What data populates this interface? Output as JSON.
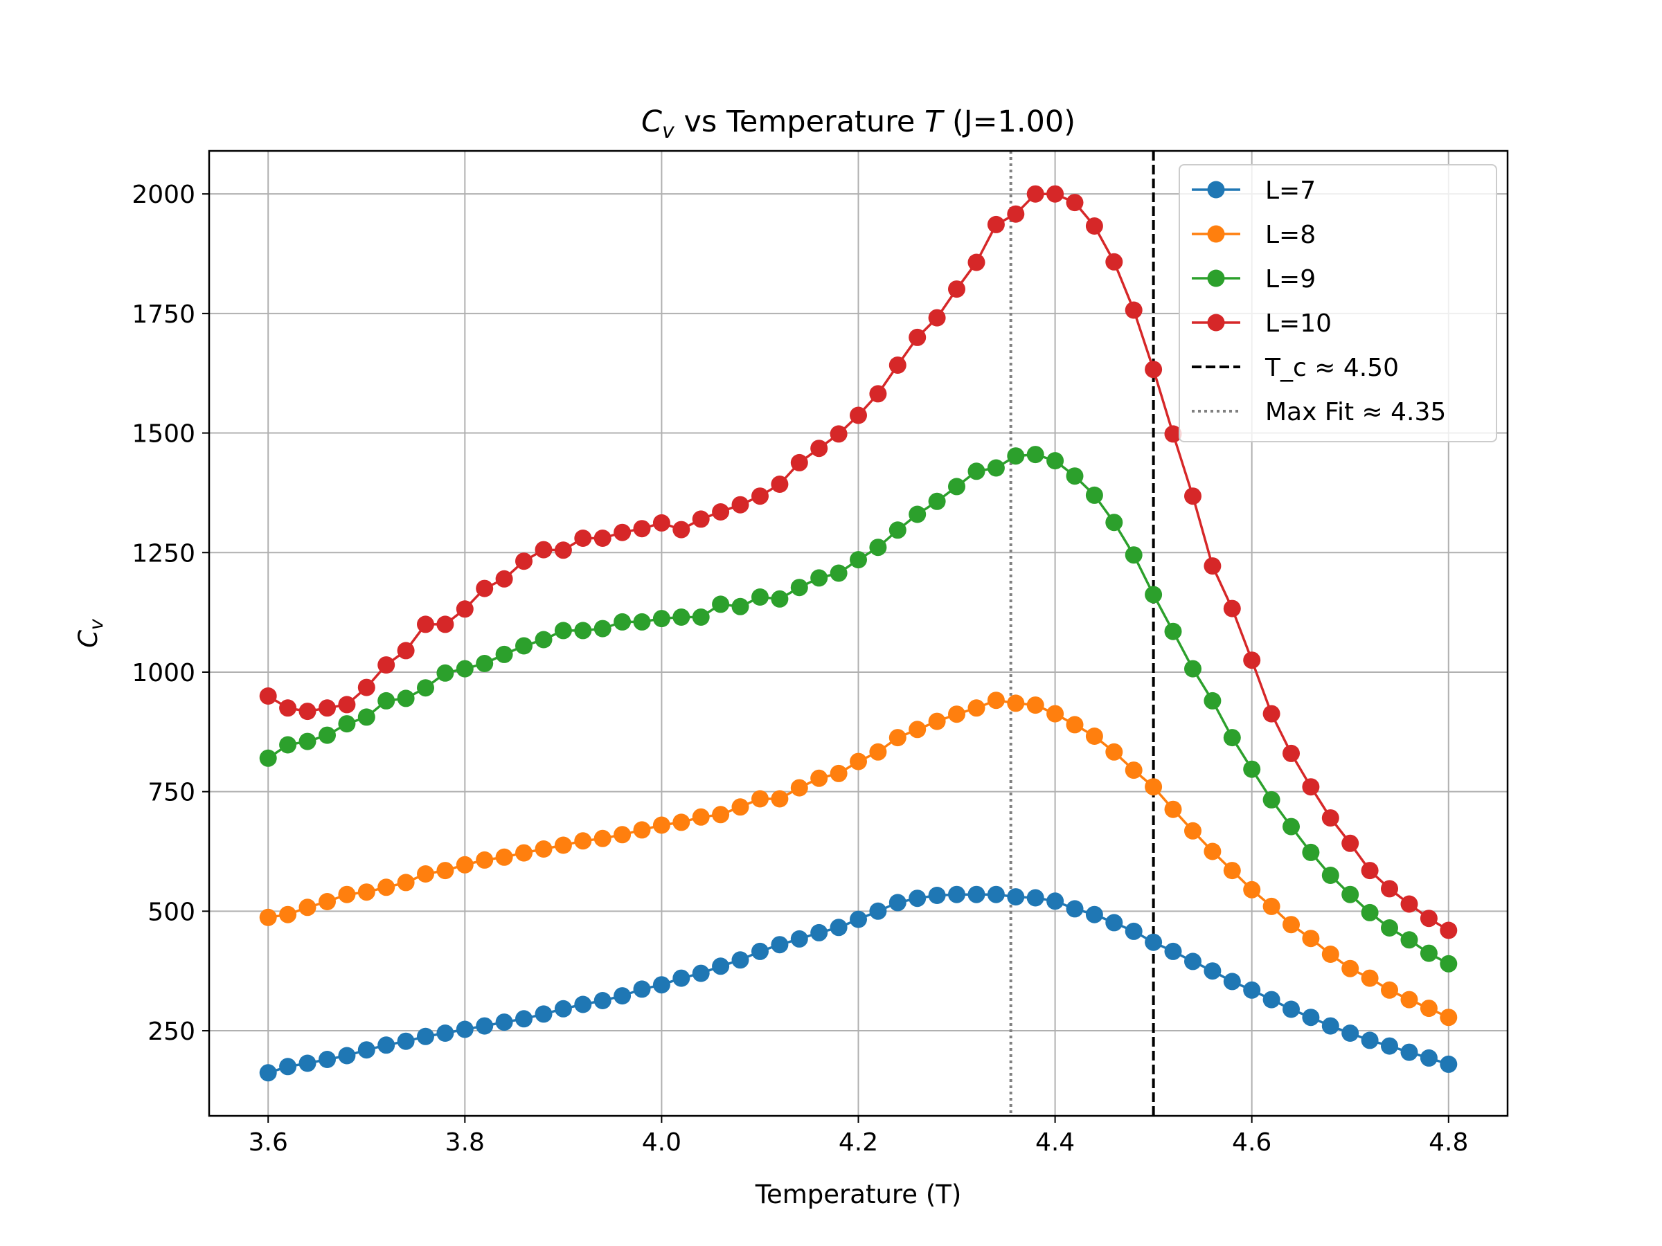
{
  "chart_data": {
    "type": "line",
    "title": "C_v vs Temperature T (J=1.00)",
    "title_parts": {
      "sym": "C",
      "sub": "v",
      "mid": " vs Temperature ",
      "var": "T",
      "tail": " (J=1.00)"
    },
    "xlabel": "Temperature (T)",
    "ylabel": "C_v",
    "ylabel_parts": {
      "sym": "C",
      "sub": "v"
    },
    "xlim": [
      3.54,
      4.86
    ],
    "ylim": [
      72,
      2090
    ],
    "xticks": [
      3.6,
      3.8,
      4.0,
      4.2,
      4.4,
      4.6,
      4.8
    ],
    "xtick_labels": [
      "3.6",
      "3.8",
      "4.0",
      "4.2",
      "4.4",
      "4.6",
      "4.8"
    ],
    "yticks": [
      250,
      500,
      750,
      1000,
      1250,
      1500,
      1750,
      2000
    ],
    "ytick_labels": [
      "250",
      "500",
      "750",
      "1000",
      "1250",
      "1500",
      "1750",
      "2000"
    ],
    "grid": true,
    "legend_position": "top-right",
    "x": [
      3.6,
      3.62,
      3.64,
      3.66,
      3.68,
      3.7,
      3.72,
      3.74,
      3.76,
      3.78,
      3.8,
      3.82,
      3.84,
      3.86,
      3.88,
      3.9,
      3.92,
      3.94,
      3.96,
      3.98,
      4.0,
      4.02,
      4.04,
      4.06,
      4.08,
      4.1,
      4.12,
      4.14,
      4.16,
      4.18,
      4.2,
      4.22,
      4.24,
      4.26,
      4.28,
      4.3,
      4.32,
      4.34,
      4.36,
      4.38,
      4.4,
      4.42,
      4.44,
      4.46,
      4.48,
      4.5,
      4.52,
      4.54,
      4.56,
      4.58,
      4.6,
      4.62,
      4.64,
      4.66,
      4.68,
      4.7,
      4.72,
      4.74,
      4.76,
      4.78,
      4.8
    ],
    "series": [
      {
        "name": "L=7",
        "color": "#1f77b4",
        "values": [
          162,
          175,
          182,
          190,
          198,
          210,
          220,
          228,
          238,
          245,
          253,
          260,
          268,
          275,
          285,
          296,
          305,
          313,
          323,
          337,
          346,
          360,
          370,
          385,
          398,
          416,
          430,
          442,
          455,
          466,
          483,
          500,
          518,
          527,
          533,
          535,
          535,
          535,
          530,
          528,
          521,
          505,
          493,
          476,
          458,
          435,
          416,
          395,
          375,
          353,
          335,
          315,
          295,
          278,
          260,
          245,
          230,
          218,
          205,
          193,
          180
        ]
      },
      {
        "name": "L=8",
        "color": "#ff7f0e",
        "values": [
          487,
          493,
          508,
          520,
          535,
          540,
          550,
          560,
          578,
          585,
          597,
          607,
          613,
          622,
          630,
          638,
          647,
          652,
          660,
          670,
          680,
          686,
          697,
          702,
          718,
          735,
          735,
          758,
          778,
          788,
          813,
          833,
          863,
          880,
          897,
          912,
          925,
          941,
          935,
          931,
          913,
          890,
          866,
          833,
          795,
          760,
          713,
          668,
          625,
          585,
          545,
          510,
          472,
          443,
          410,
          380,
          360,
          335,
          315,
          297,
          278
        ]
      },
      {
        "name": "L=9",
        "color": "#2ca02c",
        "values": [
          820,
          848,
          855,
          868,
          892,
          906,
          940,
          945,
          967,
          998,
          1007,
          1018,
          1037,
          1055,
          1068,
          1087,
          1087,
          1091,
          1105,
          1105,
          1112,
          1115,
          1115,
          1142,
          1137,
          1157,
          1153,
          1177,
          1197,
          1207,
          1235,
          1261,
          1297,
          1330,
          1357,
          1388,
          1420,
          1427,
          1452,
          1455,
          1442,
          1410,
          1370,
          1313,
          1245,
          1162,
          1085,
          1007,
          940,
          863,
          797,
          733,
          677,
          623,
          575,
          535,
          497,
          465,
          440,
          412,
          390
        ]
      },
      {
        "name": "L=10",
        "color": "#d62728",
        "values": [
          950,
          925,
          918,
          925,
          932,
          968,
          1015,
          1045,
          1100,
          1100,
          1132,
          1175,
          1195,
          1232,
          1256,
          1255,
          1280,
          1280,
          1292,
          1300,
          1312,
          1298,
          1320,
          1335,
          1350,
          1368,
          1393,
          1438,
          1468,
          1498,
          1537,
          1582,
          1642,
          1700,
          1741,
          1801,
          1857,
          1936,
          1958,
          2000,
          2000,
          1982,
          1933,
          1858,
          1757,
          1633,
          1498,
          1368,
          1222,
          1133,
          1025,
          913,
          830,
          760,
          695,
          642,
          585,
          547,
          515,
          485,
          460
        ]
      }
    ],
    "vlines": [
      {
        "name": "T_c ≈ 4.50",
        "x": 4.5,
        "color": "#000000",
        "style": "dashed"
      },
      {
        "name": "Max Fit ≈ 4.35",
        "x": 4.355,
        "color": "#808080",
        "style": "dotted"
      }
    ]
  }
}
